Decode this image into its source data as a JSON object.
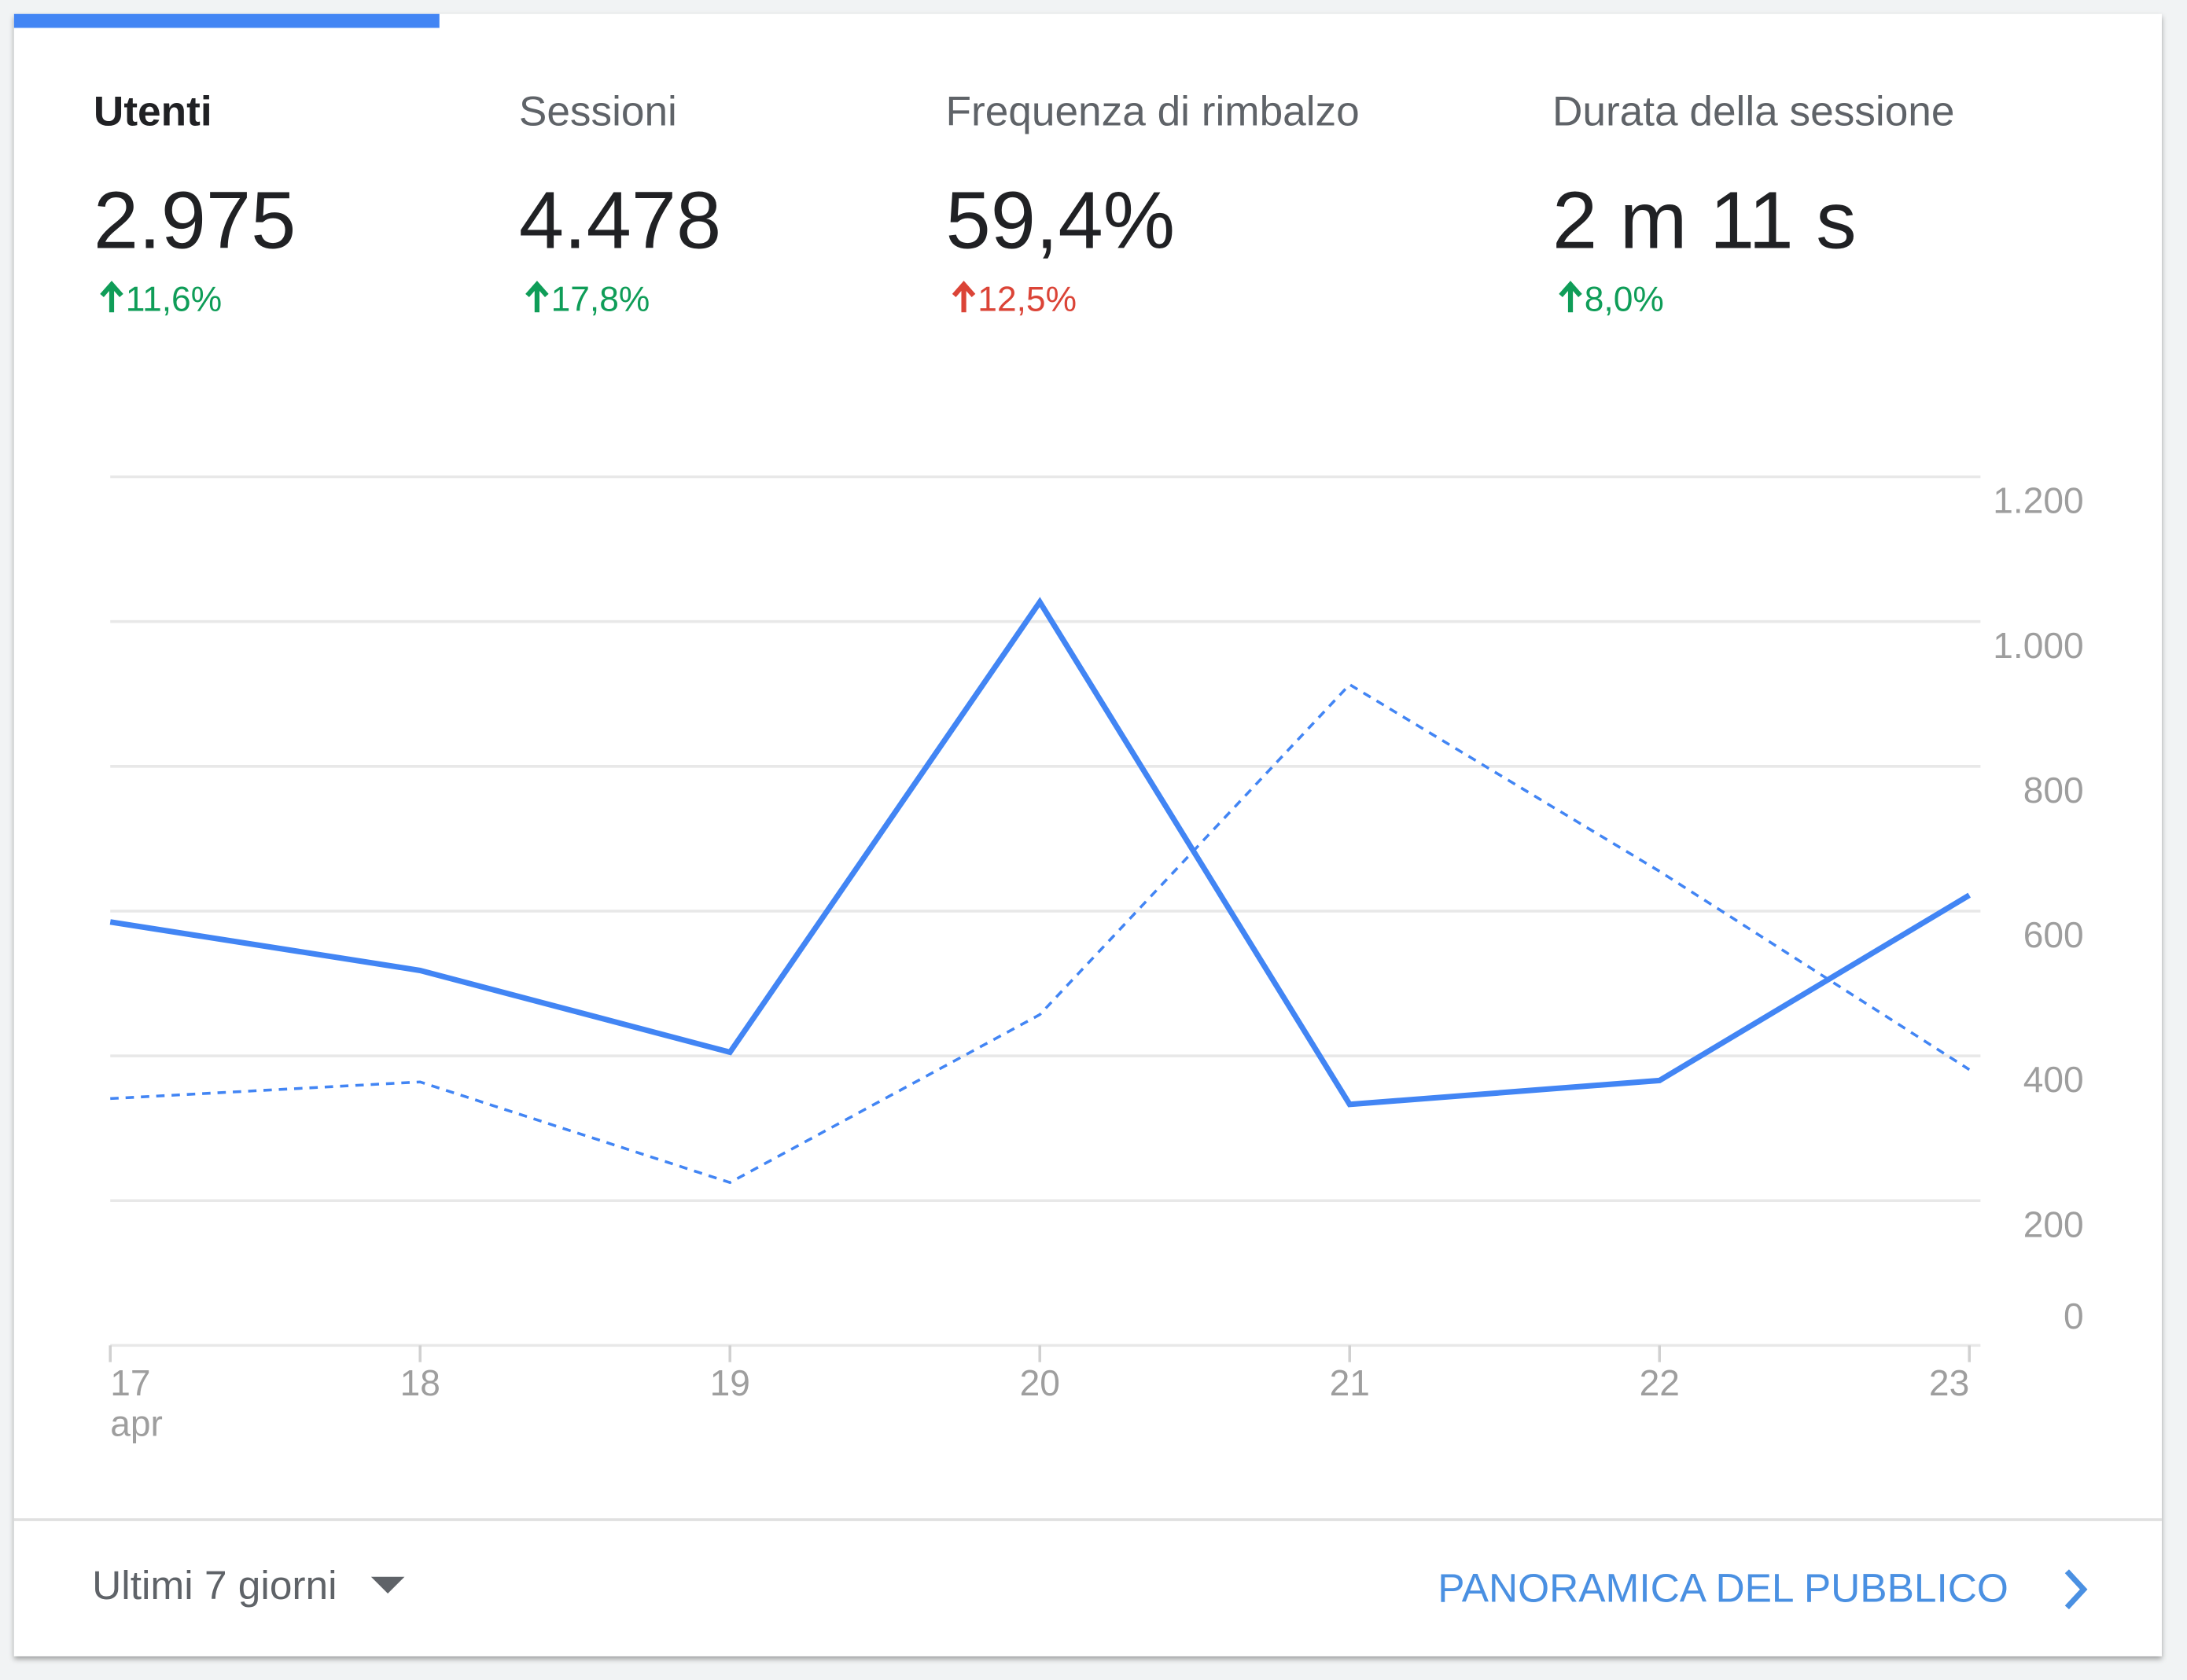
{
  "metrics": [
    {
      "label": "Utenti",
      "value": "2.975",
      "change": "11,6%",
      "trend": "up",
      "color": "#0f9d58"
    },
    {
      "label": "Sessioni",
      "value": "4.478",
      "change": "17,8%",
      "trend": "up",
      "color": "#0f9d58"
    },
    {
      "label": "Frequenza di rimbalzo",
      "value": "59,4%",
      "change": "12,5%",
      "trend": "up",
      "color": "#db4437"
    },
    {
      "label": "Durata della sessione",
      "value": "2 m 11 s",
      "change": "8,0%",
      "trend": "up",
      "color": "#0f9d58"
    }
  ],
  "selected_metric": 0,
  "chart_data": {
    "type": "line",
    "categories": [
      "17",
      "18",
      "19",
      "20",
      "21",
      "22",
      "23"
    ],
    "month_label": "apr",
    "series": [
      {
        "color": "#4285f4",
        "dashed": false,
        "values": [
          585,
          518,
          405,
          1027,
          333,
          366,
          622
        ]
      },
      {
        "color": "#4285f4",
        "dashed": true,
        "values": [
          341,
          364,
          225,
          457,
          913,
          655,
          381
        ]
      }
    ],
    "ylim": [
      0,
      1200
    ],
    "yticks": [
      0,
      200,
      400,
      600,
      800,
      {
        "value": 1000,
        "label": "1.000"
      },
      {
        "value": 1200,
        "label": "1.200"
      }
    ],
    "grid": true
  },
  "footer": {
    "range": "Ultimi 7 giorni",
    "link": "PANORAMICA DEL PUBBLICO"
  }
}
